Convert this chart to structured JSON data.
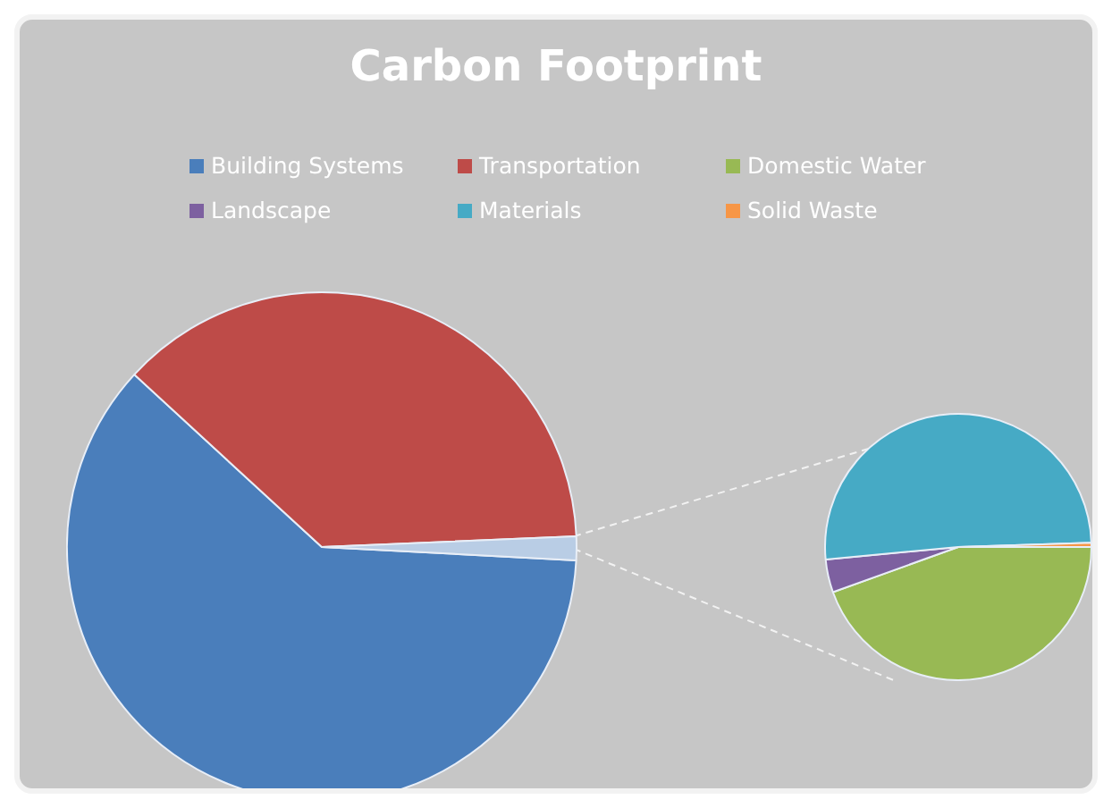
{
  "chart_data": [
    {
      "type": "pie",
      "title": "Carbon Footprint",
      "legend": "top",
      "categories": [
        "Building Systems",
        "Transportation",
        null
      ],
      "values": [
        61,
        37.5,
        1.5
      ],
      "colors": [
        "#4a7ebb",
        "#be4b48",
        "#b9cde5"
      ]
    },
    {
      "type": "pie",
      "legend": "top",
      "categories": [
        "Domestic Water",
        "Landscape",
        "Materials",
        "Solid Waste"
      ],
      "values": [
        44.5,
        4,
        51,
        0.5
      ],
      "colors": [
        "#98b954",
        "#7d60a0",
        "#46aac5",
        "#f79646"
      ]
    }
  ]
}
